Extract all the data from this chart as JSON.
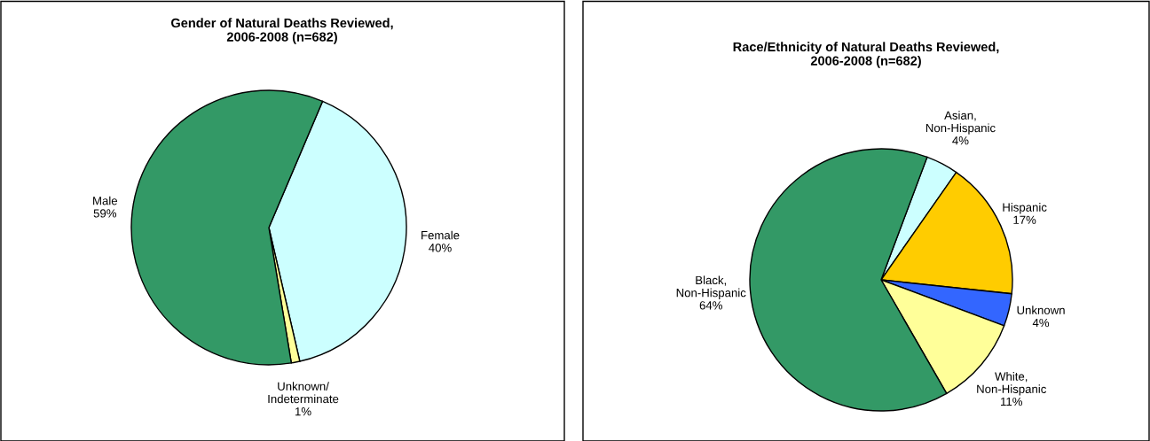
{
  "chart_data": [
    {
      "type": "pie",
      "title": "Gender of Natural Deaths Reviewed,\n2006-2008 (n=682)",
      "categories": [
        "Female",
        "Unknown/\nIndeterminate",
        "Male"
      ],
      "values": [
        40,
        1,
        59
      ],
      "value_labels": [
        "40%",
        "1%",
        "59%"
      ],
      "colors": [
        "#ccffff",
        "#ffff99",
        "#339966"
      ]
    },
    {
      "type": "pie",
      "title": "Race/Ethnicity of Natural Deaths Reviewed,\n2006-2008 (n=682)",
      "categories": [
        "Asian,\nNon-Hispanic",
        "Hispanic",
        "Unknown",
        "White,\nNon-Hispanic",
        "Black,\nNon-Hispanic"
      ],
      "values": [
        4,
        17,
        4,
        11,
        64
      ],
      "value_labels": [
        "4%",
        "17%",
        "4%",
        "11%",
        "64%"
      ],
      "colors": [
        "#ccffff",
        "#ffcc00",
        "#3366ff",
        "#ffff99",
        "#339966"
      ]
    }
  ]
}
